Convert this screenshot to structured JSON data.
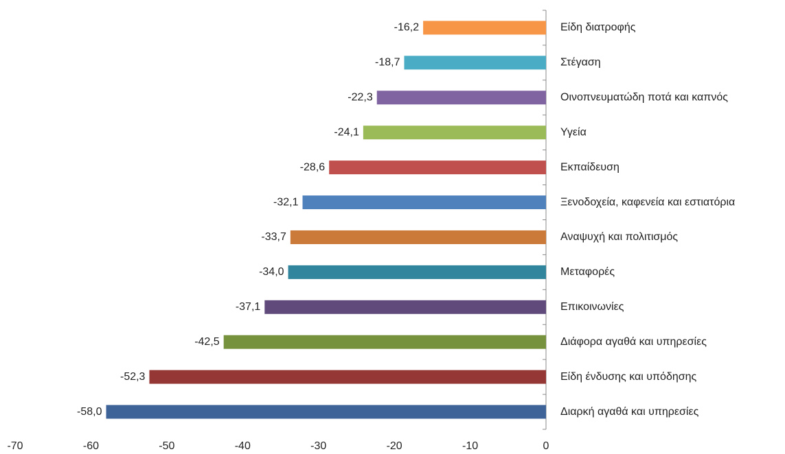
{
  "chart_data": {
    "type": "barh",
    "categories": [
      "Είδη διατροφής",
      "Στέγαση",
      "Οινοπνευματώδη ποτά και καπνός",
      "Υγεία",
      "Εκπαίδευση",
      "Ξενοδοχεία, καφενεία και εστιατόρια",
      "Αναψυχή και πολιτισμός",
      "Μεταφορές",
      "Επικοινωνίες",
      "Διάφορα αγαθά και υπηρεσίες",
      "Είδη ένδυσης και υπόδησης",
      "Διαρκή αγαθά και υπηρεσίες"
    ],
    "values": [
      -16.2,
      -18.7,
      -22.3,
      -24.1,
      -28.6,
      -32.1,
      -33.7,
      -34.0,
      -37.1,
      -42.5,
      -52.3,
      -58.0
    ],
    "value_labels": [
      "-16,2",
      "-18,7",
      "-22,3",
      "-24,1",
      "-28,6",
      "-32,1",
      "-33,7",
      "-34,0",
      "-37,1",
      "-42,5",
      "-52,3",
      "-58,0"
    ],
    "colors": [
      "#f79646",
      "#4bacc6",
      "#8064a2",
      "#9bbb59",
      "#c0504d",
      "#4f81bd",
      "#cc7a3a",
      "#31859c",
      "#604a7b",
      "#76923c",
      "#953735",
      "#3d6399"
    ],
    "xlim": [
      -70,
      0
    ],
    "xticks": [
      -70,
      -60,
      -50,
      -40,
      -30,
      -20,
      -10,
      0
    ],
    "grid": false
  }
}
